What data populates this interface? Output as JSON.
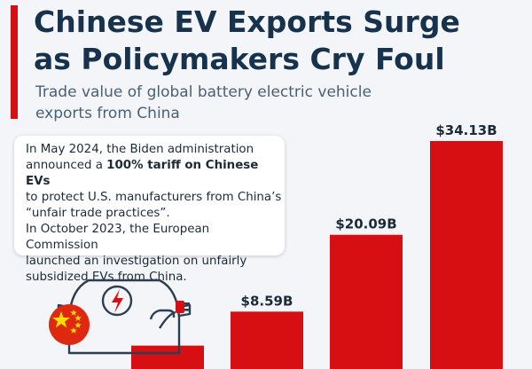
{
  "header": {
    "title_line1": "Chinese EV Exports Surge",
    "title_line2": "as Policymakers Cry Foul",
    "subtitle_line1": "Trade value of global battery electric vehicle",
    "subtitle_line2": "exports from China"
  },
  "callout": {
    "l1": "In May 2024, the Biden administration",
    "l2_pre": "announced a ",
    "l2_bold": "100% tariff on Chinese EVs",
    "l3": "to protect U.S. manufacturers from China’s",
    "l4": "“unfair trade practices”.",
    "l5": "In October 2023, the European Commission",
    "l6": "launched an investigation on unfairly",
    "l7": "subsidized EVs from China."
  },
  "colors": {
    "bar": "#d70f12",
    "title": "#17324d",
    "icon_stroke": "#2b3e52",
    "flag_red": "#de2910",
    "flag_star": "#ffde00"
  },
  "icons": [
    "electric-car-icon",
    "lightning-bolt-icon",
    "plug-icon",
    "china-flag-icon"
  ],
  "chart_data": {
    "type": "bar",
    "title": "Chinese EV Exports Surge as Policymakers Cry Foul",
    "subtitle": "Trade value of global battery electric vehicle exports from China",
    "categories": [
      "",
      "",
      "",
      ""
    ],
    "values": [
      3.5,
      8.59,
      20.09,
      34.13
    ],
    "labels": [
      "",
      "$8.59B",
      "$20.09B",
      "$34.13B"
    ],
    "unit": "B",
    "ylim": [
      0,
      34.13
    ],
    "grid": false,
    "xlabel": "",
    "ylabel": ""
  }
}
